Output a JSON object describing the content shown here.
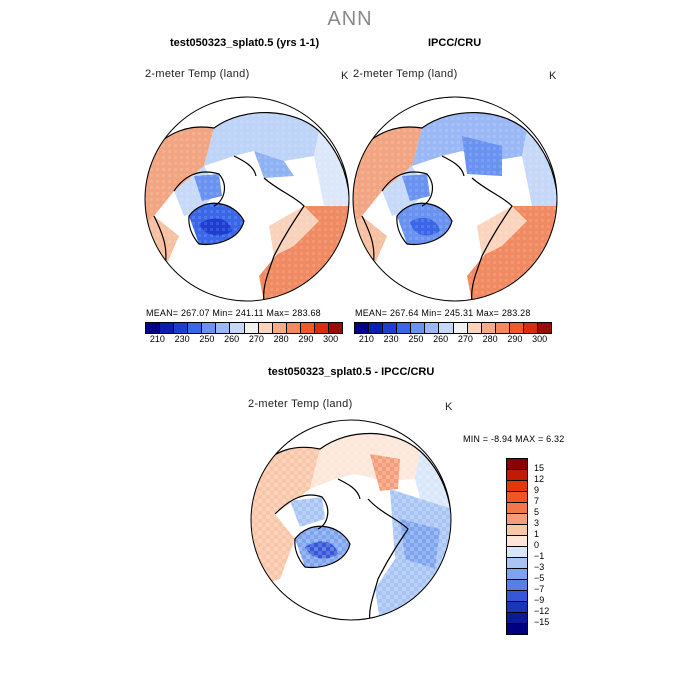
{
  "page": {
    "title": "ANN",
    "panel_left_title": "test050323_splat0.5 (yrs 1-1)",
    "panel_right_title": "IPCC/CRU",
    "panel_diff_title": "test050323_splat0.5 - IPCC/CRU"
  },
  "panels": {
    "left": {
      "variable": "2-meter Temp (land)",
      "unit": "K",
      "stats": "MEAN=  267.07    Min=  241.11    Max=  283.68"
    },
    "right": {
      "variable": "2-meter Temp (land)",
      "unit": "K",
      "stats": "MEAN=  267.64    Min=  245.31    Max=  283.28"
    },
    "diff": {
      "variable": "2-meter Temp (land)",
      "unit": "K",
      "minmax": "MIN =    -8.94  MAX =    6.32"
    }
  },
  "colorbar_abs": {
    "ticks": [
      "210",
      "230",
      "250",
      "260",
      "270",
      "280",
      "290",
      "300"
    ],
    "colors": [
      "#00008b",
      "#0a1fb0",
      "#1c3fd0",
      "#3a66e8",
      "#6a92f0",
      "#9ab8f5",
      "#c6d8f8",
      "#f2f2f2",
      "#fbd4bd",
      "#f6ab88",
      "#f2885e",
      "#f05a2a",
      "#d92c10",
      "#9a0d06"
    ]
  },
  "colorbar_diff": {
    "ticks": [
      "15",
      "12",
      "9",
      "7",
      "5",
      "3",
      "1",
      "0",
      "−1",
      "−3",
      "−5",
      "−7",
      "−9",
      "−12",
      "−15"
    ],
    "colors": [
      "#8b0000",
      "#c11a05",
      "#e5360b",
      "#f15522",
      "#f2774a",
      "#f59c78",
      "#fac6a8",
      "#fde6d8",
      "#d8e6fa",
      "#a8c4f5",
      "#7ea4ef",
      "#587fe6",
      "#3558d8",
      "#1c34b6",
      "#0c1a94",
      "#000080"
    ]
  }
}
